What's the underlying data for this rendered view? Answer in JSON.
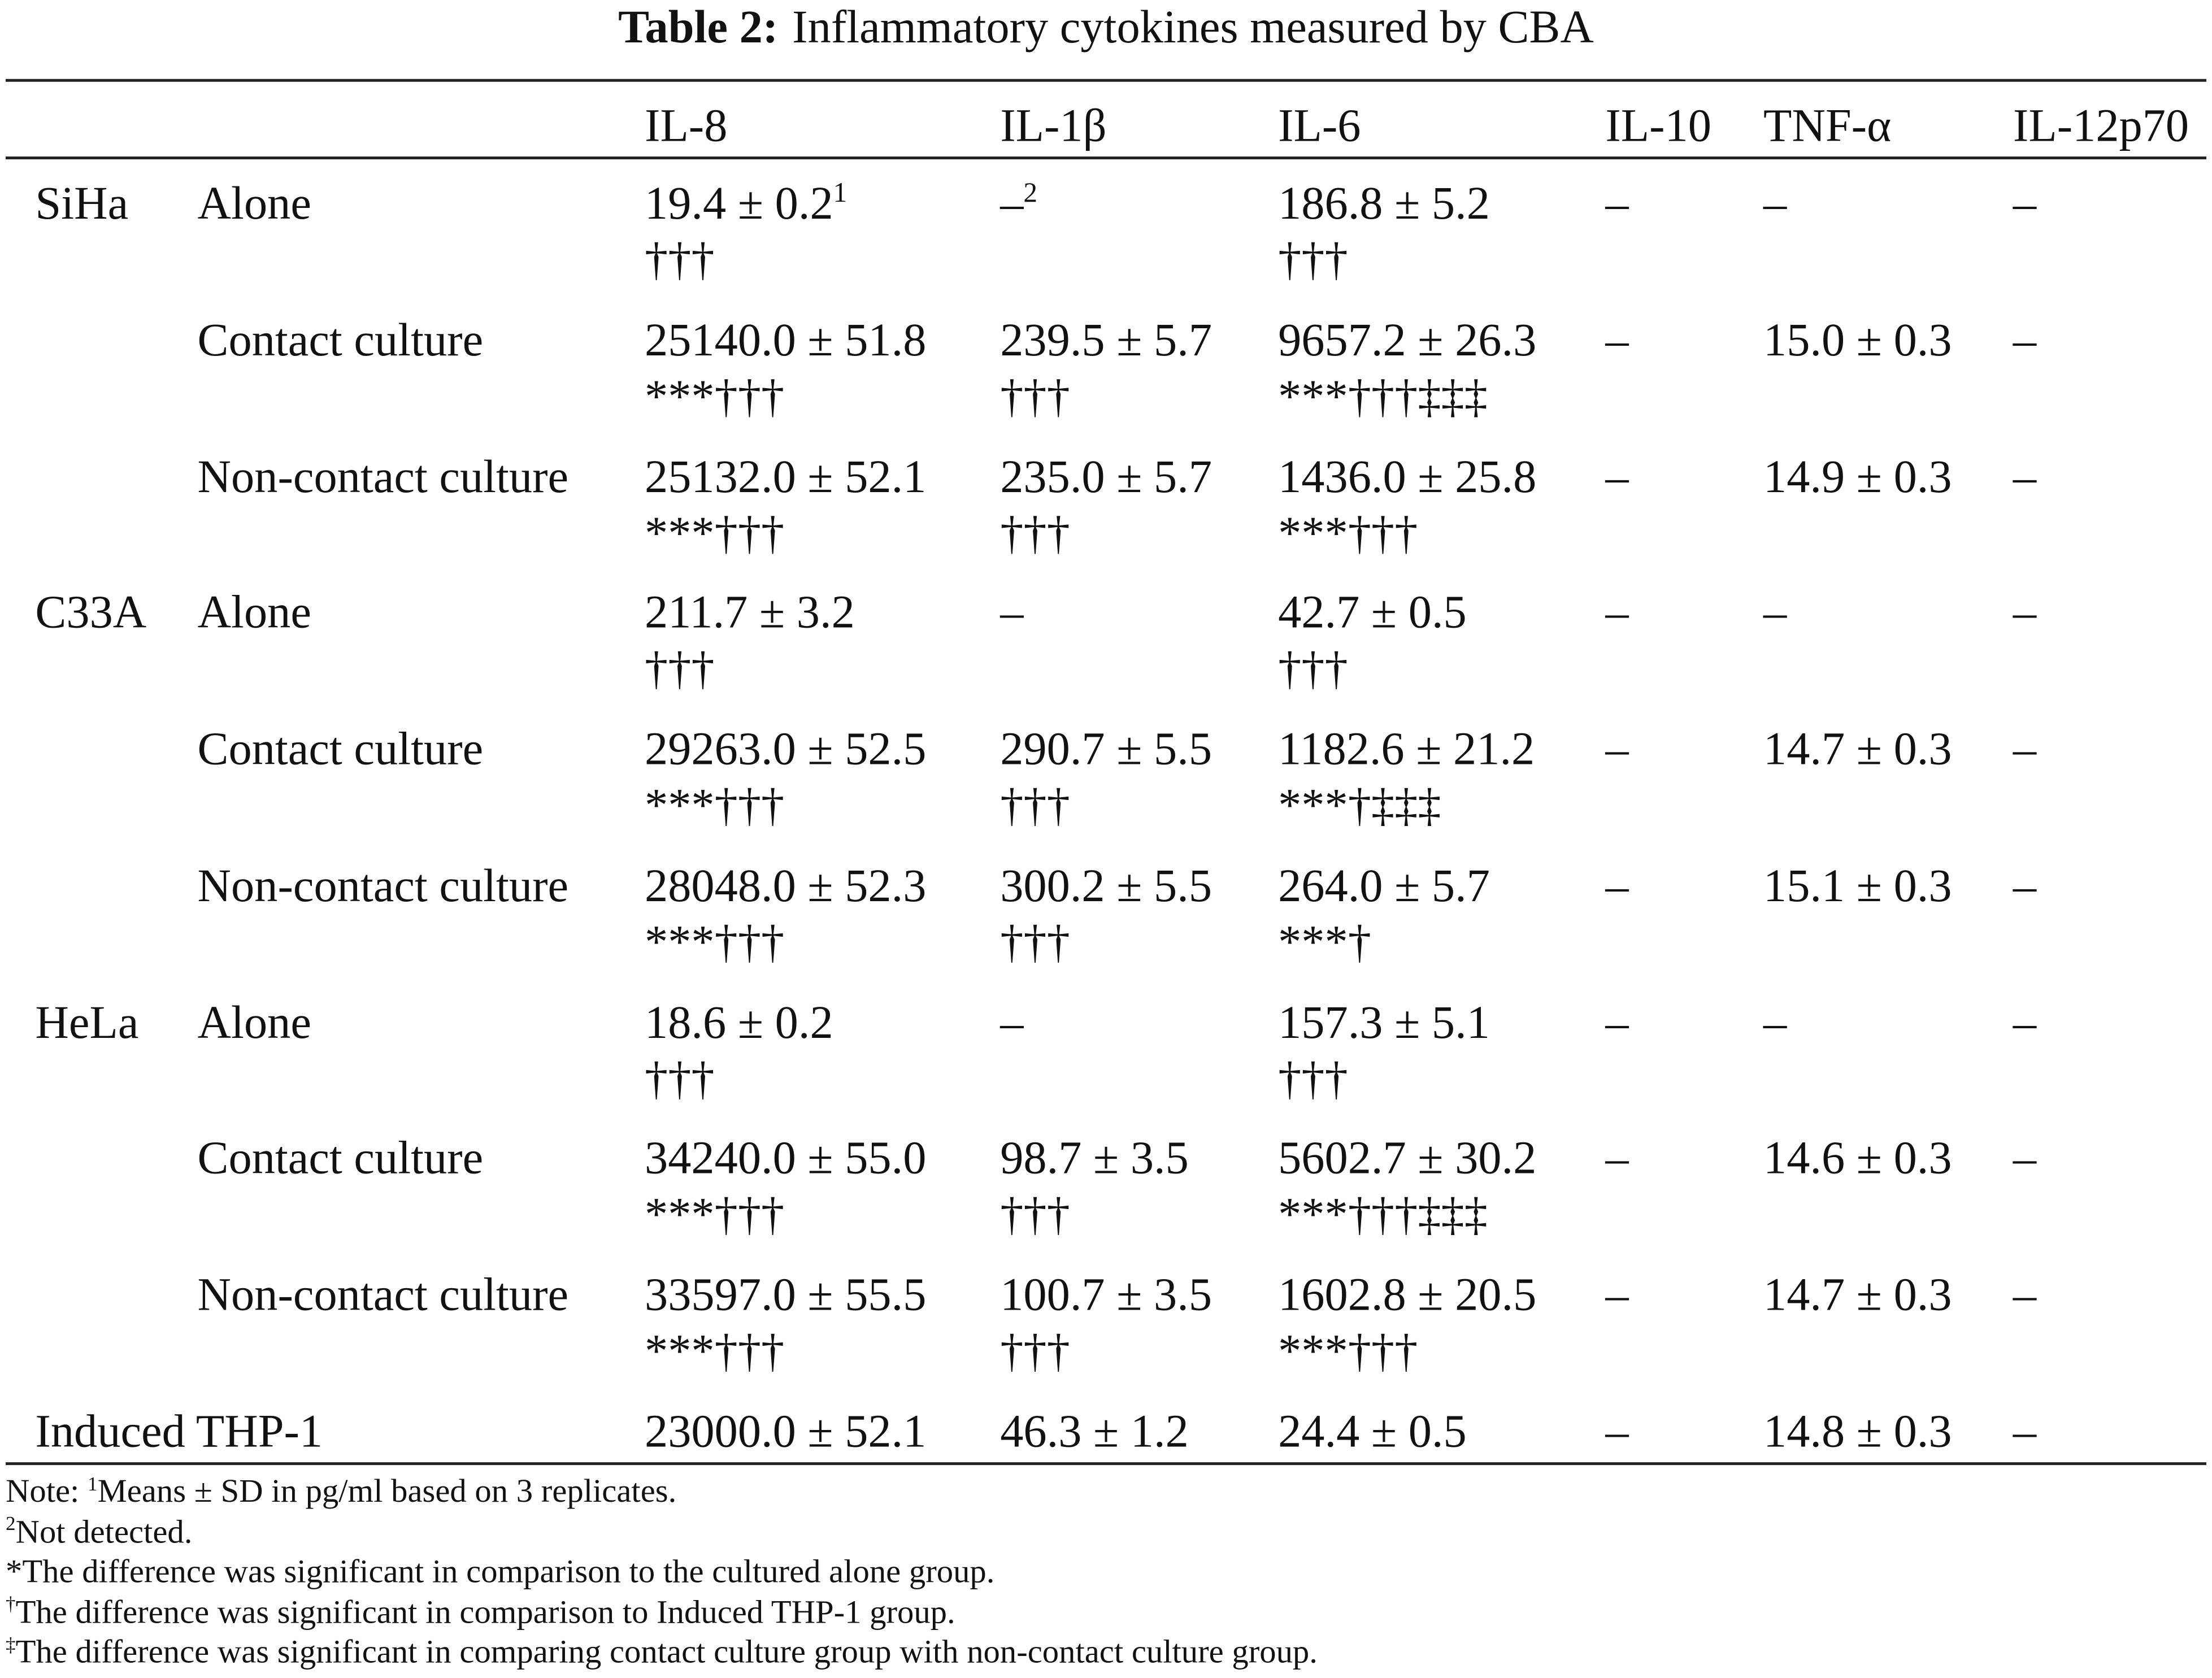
{
  "table": {
    "label": "Table 2:",
    "title": "Inflammatory cytokines measured by CBA",
    "headers": [
      "IL-8",
      "IL-1β",
      "IL-6",
      "IL-10",
      "TNF-α",
      "IL-12p70"
    ],
    "rows": [
      {
        "group": "SiHa",
        "condition": "Alone",
        "cells": [
          {
            "text": "19.4 ± 0.2",
            "note": "1",
            "sig": "†††"
          },
          {
            "text": "–",
            "note": "2"
          },
          {
            "text": "186.8 ± 5.2",
            "sig": "†††"
          },
          {
            "text": "–"
          },
          {
            "text": "–"
          },
          {
            "text": "–"
          }
        ]
      },
      {
        "condition": "Contact culture",
        "cells": [
          {
            "text": "25140.0 ± 51.8",
            "sig": "***†††"
          },
          {
            "text": "239.5 ± 5.7",
            "sig": "†††"
          },
          {
            "text": "9657.2 ± 26.3",
            "sig": "***†††‡‡‡"
          },
          {
            "text": "–"
          },
          {
            "text": "15.0 ± 0.3"
          },
          {
            "text": "–"
          }
        ]
      },
      {
        "condition": "Non-contact culture",
        "cells": [
          {
            "text": "25132.0 ± 52.1",
            "sig": "***†††"
          },
          {
            "text": "235.0 ± 5.7",
            "sig": "†††"
          },
          {
            "text": "1436.0 ± 25.8",
            "sig": "***†††"
          },
          {
            "text": "–"
          },
          {
            "text": "14.9 ± 0.3"
          },
          {
            "text": "–"
          }
        ]
      },
      {
        "group": "C33A",
        "condition": "Alone",
        "cells": [
          {
            "text": "211.7 ± 3.2",
            "sig": "†††"
          },
          {
            "text": "–"
          },
          {
            "text": "42.7 ± 0.5",
            "sig": "†††"
          },
          {
            "text": "–"
          },
          {
            "text": "–"
          },
          {
            "text": "–"
          }
        ]
      },
      {
        "condition": "Contact culture",
        "cells": [
          {
            "text": "29263.0 ± 52.5",
            "sig": "***†††"
          },
          {
            "text": "290.7 ± 5.5",
            "sig": "†††"
          },
          {
            "text": "1182.6 ± 21.2",
            "sig": "***†‡‡‡"
          },
          {
            "text": "–"
          },
          {
            "text": "14.7 ± 0.3"
          },
          {
            "text": "–"
          }
        ]
      },
      {
        "condition": "Non-contact culture",
        "cells": [
          {
            "text": "28048.0 ± 52.3",
            "sig": "***†††"
          },
          {
            "text": "300.2 ± 5.5",
            "sig": "†††"
          },
          {
            "text": "264.0 ± 5.7",
            "sig": "***†"
          },
          {
            "text": "–"
          },
          {
            "text": "15.1 ± 0.3"
          },
          {
            "text": "–"
          }
        ]
      },
      {
        "group": "HeLa",
        "condition": "Alone",
        "cells": [
          {
            "text": "18.6 ± 0.2",
            "sig": "†††"
          },
          {
            "text": "–"
          },
          {
            "text": "157.3 ± 5.1",
            "sig": "†††"
          },
          {
            "text": "–"
          },
          {
            "text": "–"
          },
          {
            "text": "–"
          }
        ]
      },
      {
        "condition": "Contact culture",
        "cells": [
          {
            "text": "34240.0 ± 55.0",
            "sig": "***†††"
          },
          {
            "text": "98.7 ± 3.5",
            "sig": "†††"
          },
          {
            "text": "5602.7 ± 30.2",
            "sig": "***†††‡‡‡"
          },
          {
            "text": "–"
          },
          {
            "text": "14.6 ± 0.3"
          },
          {
            "text": "–"
          }
        ]
      },
      {
        "condition": "Non-contact culture",
        "cells": [
          {
            "text": "33597.0 ± 55.5",
            "sig": "***†††"
          },
          {
            "text": "100.7 ± 3.5",
            "sig": "†††"
          },
          {
            "text": "1602.8 ± 20.5",
            "sig": "***†††"
          },
          {
            "text": "–"
          },
          {
            "text": "14.7 ± 0.3"
          },
          {
            "text": "–"
          }
        ]
      },
      {
        "group": "Induced THP-1",
        "cells": [
          {
            "text": "23000.0 ± 52.1"
          },
          {
            "text": "46.3 ± 1.2"
          },
          {
            "text": "24.4 ± 0.5"
          },
          {
            "text": "–"
          },
          {
            "text": "14.8 ± 0.3"
          },
          {
            "text": "–"
          }
        ]
      }
    ],
    "footnotes": [
      {
        "prefix": "Note: ",
        "mark": "1",
        "text": "Means ± SD in pg/ml based on 3 replicates."
      },
      {
        "mark": "2",
        "text": "Not detected."
      },
      {
        "text": "*The difference was significant in comparison to the cultured alone group."
      },
      {
        "mark": "†",
        "text": "The difference was significant in comparison to Induced THP-1 group."
      },
      {
        "mark": "‡",
        "text": "The difference was significant in comparing contact culture group with non-contact culture group."
      }
    ]
  }
}
